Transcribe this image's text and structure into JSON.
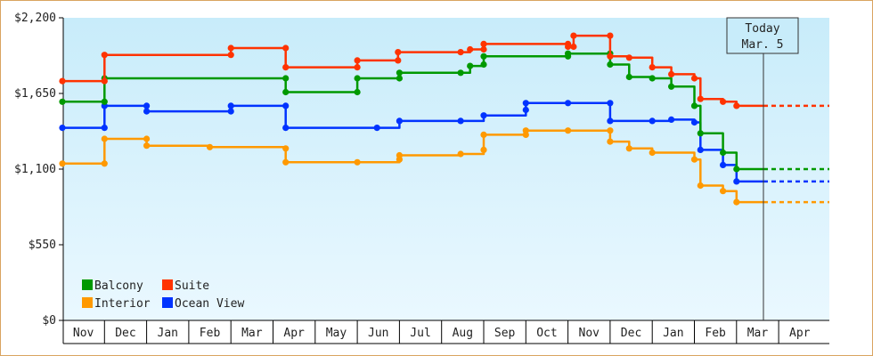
{
  "chart_data": {
    "type": "line",
    "step": true,
    "title": "",
    "xlabel": "",
    "ylabel": "",
    "y_ticks": [
      "$0",
      "$550",
      "$1,100",
      "$1,650",
      "$2,200"
    ],
    "y_tick_values": [
      0,
      550,
      1100,
      1650,
      2200
    ],
    "ylim": [
      0,
      2200
    ],
    "grid": false,
    "legend_position": "bottom-left",
    "months": [
      "Nov",
      "Dec",
      "Jan",
      "Feb",
      "Mar",
      "Apr",
      "May",
      "Jun",
      "Jul",
      "Aug",
      "Sep",
      "Oct",
      "Nov",
      "Dec",
      "Jan",
      "Feb",
      "Mar",
      "Apr"
    ],
    "today": {
      "line1": "Today",
      "line2": "Mar. 5"
    },
    "series": [
      {
        "name": "Suite",
        "color": "#ff3300",
        "projection": 1560,
        "points": [
          [
            "Nov 1",
            1740
          ],
          [
            "Dec 1",
            1740
          ],
          [
            "Dec 1",
            1930
          ],
          [
            "Mar 1",
            1930
          ],
          [
            "Mar 1",
            1980
          ],
          [
            "Apr 10",
            1980
          ],
          [
            "Apr 10",
            1840
          ],
          [
            "Jun 1",
            1840
          ],
          [
            "Jun 1",
            1890
          ],
          [
            "Jun 30",
            1890
          ],
          [
            "Jun 30",
            1950
          ],
          [
            "Aug 15",
            1950
          ],
          [
            "Aug 22",
            1970
          ],
          [
            "Sep 1",
            1970
          ],
          [
            "Sep 1",
            2010
          ],
          [
            "Nov 1",
            2010
          ],
          [
            "Nov 1",
            1990
          ],
          [
            "Nov 5",
            1990
          ],
          [
            "Nov 5",
            2070
          ],
          [
            "Dec 1",
            2070
          ],
          [
            "Dec 1",
            1920
          ],
          [
            "Dec 15",
            1910
          ],
          [
            "Jan 1",
            1840
          ],
          [
            "Jan 15",
            1790
          ],
          [
            "Feb 1",
            1760
          ],
          [
            "Feb 5",
            1610
          ],
          [
            "Feb 20",
            1590
          ],
          [
            "Mar 1",
            1560
          ]
        ]
      },
      {
        "name": "Balcony",
        "color": "#009900",
        "projection": 1100,
        "points": [
          [
            "Nov 1",
            1590
          ],
          [
            "Dec 1",
            1590
          ],
          [
            "Dec 1",
            1760
          ],
          [
            "Apr 10",
            1760
          ],
          [
            "Apr 10",
            1660
          ],
          [
            "Jun 1",
            1660
          ],
          [
            "Jun 1",
            1760
          ],
          [
            "Jul 1",
            1760
          ],
          [
            "Jul 1",
            1800
          ],
          [
            "Aug 15",
            1800
          ],
          [
            "Aug 22",
            1850
          ],
          [
            "Sep 1",
            1860
          ],
          [
            "Sep 1",
            1920
          ],
          [
            "Nov 1",
            1920
          ],
          [
            "Nov 1",
            1940
          ],
          [
            "Dec 1",
            1940
          ],
          [
            "Dec 1",
            1860
          ],
          [
            "Dec 15",
            1770
          ],
          [
            "Jan 1",
            1760
          ],
          [
            "Jan 15",
            1700
          ],
          [
            "Feb 1",
            1560
          ],
          [
            "Feb 5",
            1360
          ],
          [
            "Feb 20",
            1220
          ],
          [
            "Mar 1",
            1100
          ]
        ]
      },
      {
        "name": "Ocean View",
        "color": "#0033ff",
        "projection": 1010,
        "points": [
          [
            "Nov 1",
            1400
          ],
          [
            "Dec 1",
            1400
          ],
          [
            "Dec 1",
            1560
          ],
          [
            "Jan 1",
            1560
          ],
          [
            "Jan 1",
            1520
          ],
          [
            "Mar 1",
            1520
          ],
          [
            "Mar 1",
            1560
          ],
          [
            "Apr 10",
            1560
          ],
          [
            "Apr 10",
            1400
          ],
          [
            "Jun 15",
            1400
          ],
          [
            "Jul 1",
            1450
          ],
          [
            "Aug 15",
            1450
          ],
          [
            "Sep 1",
            1490
          ],
          [
            "Oct 1",
            1530
          ],
          [
            "Oct 1",
            1580
          ],
          [
            "Nov 1",
            1580
          ],
          [
            "Dec 1",
            1580
          ],
          [
            "Dec 1",
            1450
          ],
          [
            "Jan 1",
            1450
          ],
          [
            "Jan 15",
            1460
          ],
          [
            "Feb 1",
            1440
          ],
          [
            "Feb 5",
            1240
          ],
          [
            "Feb 20",
            1130
          ],
          [
            "Mar 1",
            1010
          ]
        ]
      },
      {
        "name": "Interior",
        "color": "#ff9900",
        "projection": 860,
        "points": [
          [
            "Nov 1",
            1140
          ],
          [
            "Dec 1",
            1140
          ],
          [
            "Dec 1",
            1320
          ],
          [
            "Jan 1",
            1320
          ],
          [
            "Jan 1",
            1270
          ],
          [
            "Feb 15",
            1260
          ],
          [
            "Apr 10",
            1250
          ],
          [
            "Apr 10",
            1150
          ],
          [
            "Jun 1",
            1150
          ],
          [
            "Jul 1",
            1170
          ],
          [
            "Jul 1",
            1200
          ],
          [
            "Aug 15",
            1210
          ],
          [
            "Sep 1",
            1240
          ],
          [
            "Sep 1",
            1350
          ],
          [
            "Oct 1",
            1350
          ],
          [
            "Oct 1",
            1380
          ],
          [
            "Nov 1",
            1380
          ],
          [
            "Dec 1",
            1380
          ],
          [
            "Dec 1",
            1300
          ],
          [
            "Dec 15",
            1250
          ],
          [
            "Jan 1",
            1220
          ],
          [
            "Feb 1",
            1170
          ],
          [
            "Feb 5",
            980
          ],
          [
            "Feb 20",
            940
          ],
          [
            "Mar 1",
            860
          ]
        ]
      }
    ],
    "legend": [
      {
        "name": "Balcony",
        "color": "#009900"
      },
      {
        "name": "Suite",
        "color": "#ff3300"
      },
      {
        "name": "Interior",
        "color": "#ff9900"
      },
      {
        "name": "Ocean View",
        "color": "#0033ff"
      }
    ]
  }
}
